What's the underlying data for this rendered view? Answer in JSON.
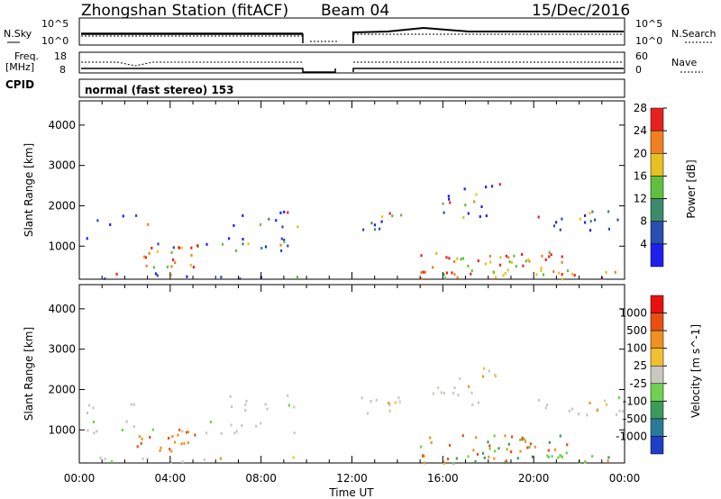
{
  "header": {
    "station": "Zhongshan Station (fitACF)",
    "beam": "Beam 04",
    "date": "15/Dec/2016"
  },
  "top_panels": {
    "nsky_label": "N.Sky",
    "nsky_ticks": [
      "10^5",
      "10^0"
    ],
    "nsearch_label": "N.Search",
    "nsearch_ticks": [
      "10^5",
      "10^0"
    ],
    "freq_label": "Freq.",
    "freq_unit": "[MHz]",
    "freq_ticks": [
      "18",
      "8"
    ],
    "nave_label": "Nave",
    "nave_ticks": [
      "60",
      "0"
    ],
    "cpid_label": "CPID",
    "cpid_text": "normal (fast stereo) 153"
  },
  "chart_data": [
    {
      "type": "heatmap",
      "title": "",
      "xlabel": "",
      "ylabel": "Slant Range [km]",
      "ylim": [
        180,
        4600
      ],
      "yticks": [
        "1000",
        "2000",
        "3000",
        "4000"
      ],
      "xticks": [
        "00:00",
        "04:00",
        "08:00",
        "12:00",
        "16:00",
        "20:00",
        "00:00"
      ],
      "colorbar_label": "Power [dB]",
      "colorbar_ticks": [
        "4",
        "8",
        "12",
        "16",
        "20",
        "24",
        "28"
      ],
      "colorbar_colors": [
        "#1f1ff0",
        "#2a4fb0",
        "#3d8a6a",
        "#5fc040",
        "#e8c020",
        "#f08020",
        "#e82020"
      ]
    },
    {
      "type": "heatmap",
      "title": "",
      "xlabel": "Time UT",
      "ylabel": "Slant Range [km]",
      "ylim": [
        180,
        4600
      ],
      "yticks": [
        "1000",
        "2000",
        "3000",
        "4000"
      ],
      "xticks": [
        "00:00",
        "04:00",
        "08:00",
        "12:00",
        "16:00",
        "20:00",
        "00:00"
      ],
      "colorbar_label": "Velocity [m s^-1]",
      "colorbar_ticks": [
        "1000",
        "500",
        "100",
        "25",
        "-25",
        "-100",
        "-500",
        "-1000"
      ],
      "colorbar_colors": [
        "#1f3fc8",
        "#2a7a9a",
        "#3d9a5a",
        "#70d050",
        "#c8c8c0",
        "#f0c030",
        "#f09020",
        "#e85010",
        "#e81010"
      ]
    }
  ]
}
